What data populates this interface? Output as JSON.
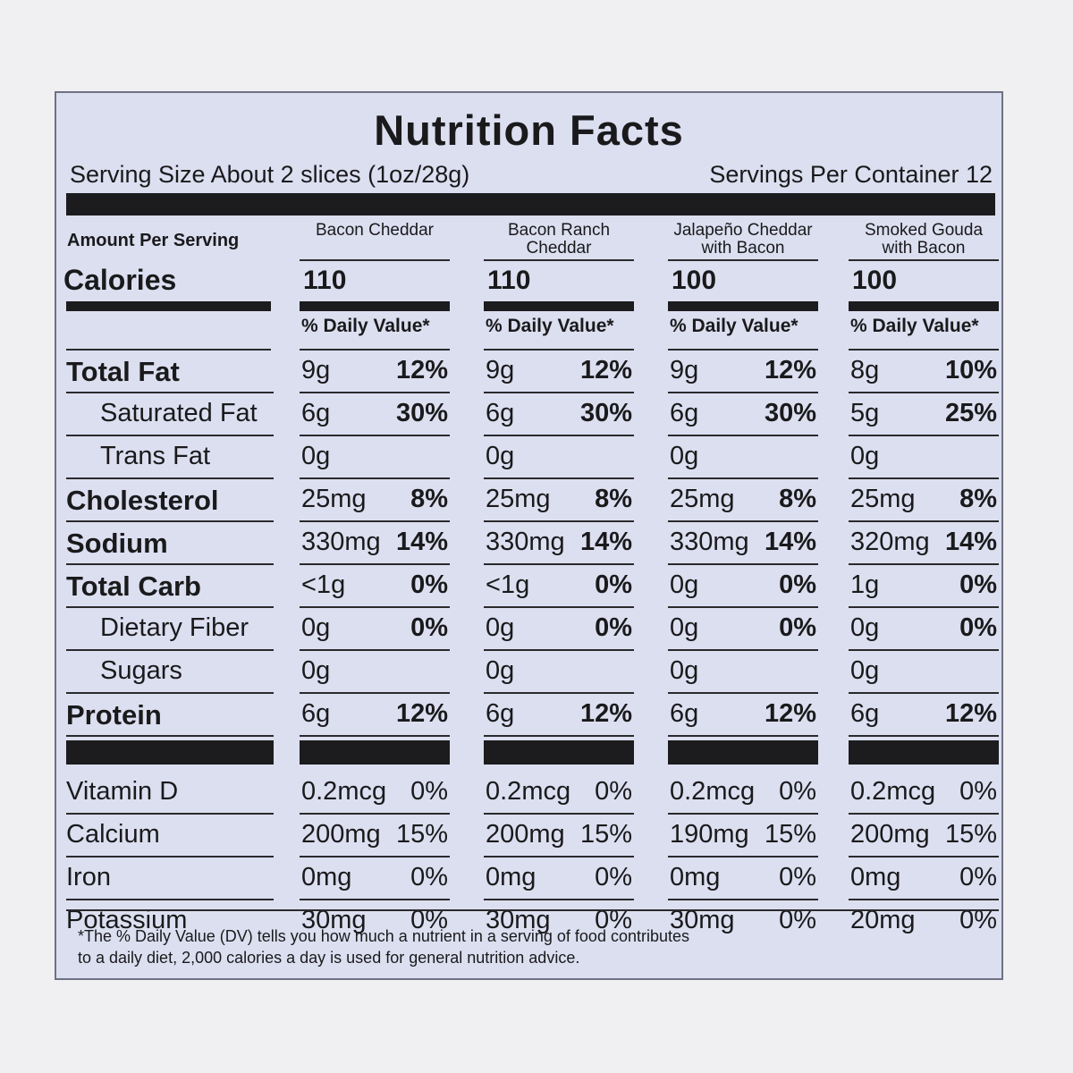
{
  "title": "Nutrition Facts",
  "serving_size": "Serving Size  About 2 slices (1oz/28g)",
  "servings_per_container": "Servings Per Container 12",
  "amount_per_serving": "Amount Per Serving",
  "calories_label": "Calories",
  "dv_label": "% Daily Value*",
  "products": [
    {
      "name": "Bacon Cheddar",
      "calories": "110"
    },
    {
      "name": "Bacon Ranch Cheddar",
      "calories": "110"
    },
    {
      "name": "Jalapeño Cheddar with Bacon",
      "calories": "100"
    },
    {
      "name": "Smoked Gouda with Bacon",
      "calories": "100"
    }
  ],
  "nutrients": [
    {
      "label": "Total Fat",
      "style": "main",
      "values": [
        [
          "9g",
          "12%"
        ],
        [
          "9g",
          "12%"
        ],
        [
          "9g",
          "12%"
        ],
        [
          "8g",
          "10%"
        ]
      ]
    },
    {
      "label": "Saturated Fat",
      "style": "sub",
      "values": [
        [
          "6g",
          "30%"
        ],
        [
          "6g",
          "30%"
        ],
        [
          "6g",
          "30%"
        ],
        [
          "5g",
          "25%"
        ]
      ]
    },
    {
      "label": "Trans Fat",
      "style": "sub",
      "values": [
        [
          "0g",
          ""
        ],
        [
          "0g",
          ""
        ],
        [
          "0g",
          ""
        ],
        [
          "0g",
          ""
        ]
      ]
    },
    {
      "label": "Cholesterol",
      "style": "main",
      "values": [
        [
          "25mg",
          "8%"
        ],
        [
          "25mg",
          "8%"
        ],
        [
          "25mg",
          "8%"
        ],
        [
          "25mg",
          "8%"
        ]
      ]
    },
    {
      "label": "Sodium",
      "style": "main",
      "values": [
        [
          "330mg",
          "14%"
        ],
        [
          "330mg",
          "14%"
        ],
        [
          "330mg",
          "14%"
        ],
        [
          "320mg",
          "14%"
        ]
      ]
    },
    {
      "label": "Total Carb",
      "style": "main",
      "values": [
        [
          "<1g",
          "0%"
        ],
        [
          "<1g",
          "0%"
        ],
        [
          "0g",
          "0%"
        ],
        [
          "1g",
          "0%"
        ]
      ]
    },
    {
      "label": "Dietary Fiber",
      "style": "sub",
      "values": [
        [
          "0g",
          "0%"
        ],
        [
          "0g",
          "0%"
        ],
        [
          "0g",
          "0%"
        ],
        [
          "0g",
          "0%"
        ]
      ]
    },
    {
      "label": "Sugars",
      "style": "sub",
      "values": [
        [
          "0g",
          ""
        ],
        [
          "0g",
          ""
        ],
        [
          "0g",
          ""
        ],
        [
          "0g",
          ""
        ]
      ]
    },
    {
      "label": "Protein",
      "style": "main",
      "values": [
        [
          "6g",
          "12%"
        ],
        [
          "6g",
          "12%"
        ],
        [
          "6g",
          "12%"
        ],
        [
          "6g",
          "12%"
        ]
      ]
    }
  ],
  "vitamins": [
    {
      "label": "Vitamin D",
      "values": [
        [
          "0.2mcg",
          "0%"
        ],
        [
          "0.2mcg",
          "0%"
        ],
        [
          "0.2mcg",
          "0%"
        ],
        [
          "0.2mcg",
          "0%"
        ]
      ]
    },
    {
      "label": "Calcium",
      "values": [
        [
          "200mg",
          "15%"
        ],
        [
          "200mg",
          "15%"
        ],
        [
          "190mg",
          "15%"
        ],
        [
          "200mg",
          "15%"
        ]
      ]
    },
    {
      "label": "Iron",
      "values": [
        [
          "0mg",
          "0%"
        ],
        [
          "0mg",
          "0%"
        ],
        [
          "0mg",
          "0%"
        ],
        [
          "0mg",
          "0%"
        ]
      ]
    },
    {
      "label": "Potassium",
      "values": [
        [
          "30mg",
          "0%"
        ],
        [
          "30mg",
          "0%"
        ],
        [
          "30mg",
          "0%"
        ],
        [
          "20mg",
          "0%"
        ]
      ]
    }
  ],
  "footnote_line1": "*The % Daily Value (DV) tells you how much a nutrient in a serving of food contributes",
  "footnote_line2": "to a daily diet, 2,000 calories a day is used for general nutrition advice."
}
